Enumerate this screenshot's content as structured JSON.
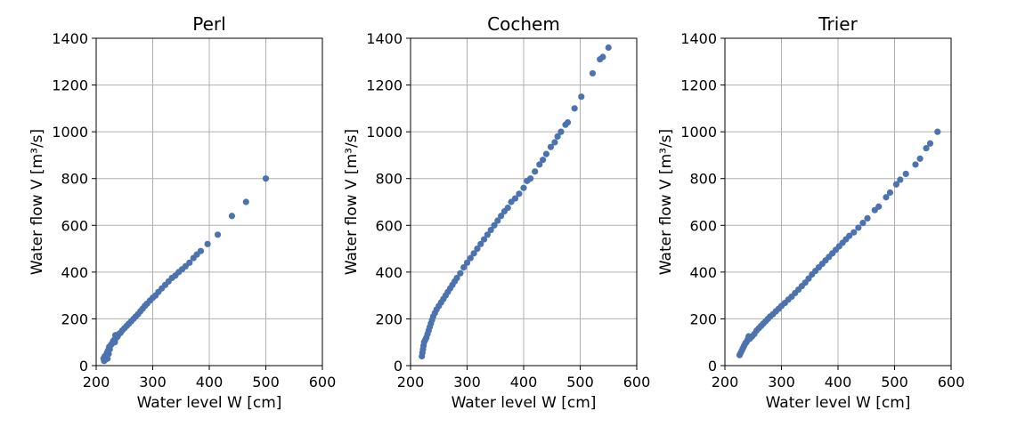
{
  "colors": {
    "marker": "#4c72b0",
    "grid": "#b0b0b0",
    "frame": "#000000"
  },
  "chart_data": [
    {
      "type": "scatter",
      "title": "Perl",
      "xlabel": "Water level W [cm]",
      "ylabel": "Water flow V [m³/s]",
      "xlim": [
        200,
        600
      ],
      "ylim": [
        0,
        1400
      ],
      "xticks": [
        200,
        300,
        400,
        500,
        600
      ],
      "yticks": [
        0,
        200,
        400,
        600,
        800,
        1000,
        1200,
        1400
      ],
      "grid": true,
      "points": [
        [
          213,
          30
        ],
        [
          214,
          20
        ],
        [
          215,
          40
        ],
        [
          216,
          25
        ],
        [
          217,
          35
        ],
        [
          218,
          45
        ],
        [
          219,
          55
        ],
        [
          220,
          30
        ],
        [
          221,
          65
        ],
        [
          222,
          50
        ],
        [
          223,
          80
        ],
        [
          224,
          70
        ],
        [
          226,
          88
        ],
        [
          228,
          95
        ],
        [
          230,
          105
        ],
        [
          232,
          110
        ],
        [
          233,
          100
        ],
        [
          234,
          130
        ],
        [
          236,
          120
        ],
        [
          238,
          125
        ],
        [
          240,
          135
        ],
        [
          243,
          140
        ],
        [
          246,
          150
        ],
        [
          250,
          160
        ],
        [
          254,
          170
        ],
        [
          258,
          180
        ],
        [
          262,
          190
        ],
        [
          266,
          200
        ],
        [
          270,
          210
        ],
        [
          274,
          220
        ],
        [
          278,
          232
        ],
        [
          282,
          243
        ],
        [
          286,
          255
        ],
        [
          290,
          265
        ],
        [
          295,
          278
        ],
        [
          300,
          290
        ],
        [
          305,
          300
        ],
        [
          310,
          315
        ],
        [
          316,
          330
        ],
        [
          322,
          345
        ],
        [
          328,
          360
        ],
        [
          334,
          375
        ],
        [
          340,
          385
        ],
        [
          346,
          400
        ],
        [
          352,
          412
        ],
        [
          358,
          425
        ],
        [
          365,
          440
        ],
        [
          372,
          460
        ],
        [
          378,
          475
        ],
        [
          385,
          490
        ],
        [
          397,
          520
        ],
        [
          415,
          560
        ],
        [
          440,
          640
        ],
        [
          465,
          700
        ],
        [
          500,
          800
        ]
      ]
    },
    {
      "type": "scatter",
      "title": "Cochem",
      "xlabel": "Water level W [cm]",
      "ylabel": "Water flow V [m³/s]",
      "xlim": [
        200,
        600
      ],
      "ylim": [
        0,
        1400
      ],
      "xticks": [
        200,
        300,
        400,
        500,
        600
      ],
      "yticks": [
        0,
        200,
        400,
        600,
        800,
        1000,
        1200,
        1400
      ],
      "grid": true,
      "points": [
        [
          220,
          40
        ],
        [
          221,
          55
        ],
        [
          222,
          70
        ],
        [
          223,
          85
        ],
        [
          224,
          100
        ],
        [
          226,
          110
        ],
        [
          228,
          120
        ],
        [
          230,
          135
        ],
        [
          232,
          150
        ],
        [
          234,
          165
        ],
        [
          236,
          180
        ],
        [
          238,
          195
        ],
        [
          240,
          210
        ],
        [
          243,
          225
        ],
        [
          246,
          240
        ],
        [
          250,
          255
        ],
        [
          254,
          270
        ],
        [
          258,
          285
        ],
        [
          262,
          300
        ],
        [
          266,
          315
        ],
        [
          270,
          330
        ],
        [
          274,
          345
        ],
        [
          278,
          360
        ],
        [
          282,
          375
        ],
        [
          288,
          395
        ],
        [
          294,
          420
        ],
        [
          300,
          440
        ],
        [
          306,
          460
        ],
        [
          312,
          480
        ],
        [
          318,
          500
        ],
        [
          324,
          520
        ],
        [
          330,
          540
        ],
        [
          336,
          560
        ],
        [
          342,
          580
        ],
        [
          348,
          600
        ],
        [
          354,
          620
        ],
        [
          360,
          640
        ],
        [
          366,
          660
        ],
        [
          372,
          675
        ],
        [
          378,
          700
        ],
        [
          385,
          715
        ],
        [
          392,
          735
        ],
        [
          400,
          760
        ],
        [
          406,
          790
        ],
        [
          412,
          800
        ],
        [
          420,
          830
        ],
        [
          428,
          860
        ],
        [
          434,
          880
        ],
        [
          440,
          905
        ],
        [
          448,
          935
        ],
        [
          455,
          955
        ],
        [
          460,
          980
        ],
        [
          466,
          1000
        ],
        [
          474,
          1030
        ],
        [
          478,
          1040
        ],
        [
          490,
          1100
        ],
        [
          502,
          1150
        ],
        [
          522,
          1250
        ],
        [
          535,
          1310
        ],
        [
          540,
          1320
        ],
        [
          550,
          1360
        ]
      ]
    },
    {
      "type": "scatter",
      "title": "Trier",
      "xlabel": "Water level W [cm]",
      "ylabel": "Water flow V [m³/s]",
      "xlim": [
        200,
        600
      ],
      "ylim": [
        0,
        1400
      ],
      "xticks": [
        200,
        300,
        400,
        500,
        600
      ],
      "yticks": [
        0,
        200,
        400,
        600,
        800,
        1000,
        1200,
        1400
      ],
      "grid": true,
      "points": [
        [
          226,
          45
        ],
        [
          228,
          55
        ],
        [
          230,
          65
        ],
        [
          232,
          75
        ],
        [
          234,
          85
        ],
        [
          236,
          95
        ],
        [
          238,
          100
        ],
        [
          240,
          110
        ],
        [
          242,
          125
        ],
        [
          244,
          115
        ],
        [
          248,
          125
        ],
        [
          252,
          135
        ],
        [
          256,
          150
        ],
        [
          260,
          160
        ],
        [
          264,
          170
        ],
        [
          268,
          180
        ],
        [
          272,
          190
        ],
        [
          276,
          200
        ],
        [
          280,
          210
        ],
        [
          285,
          220
        ],
        [
          290,
          232
        ],
        [
          295,
          243
        ],
        [
          300,
          255
        ],
        [
          306,
          268
        ],
        [
          312,
          282
        ],
        [
          318,
          295
        ],
        [
          324,
          310
        ],
        [
          330,
          325
        ],
        [
          336,
          340
        ],
        [
          342,
          355
        ],
        [
          348,
          372
        ],
        [
          354,
          390
        ],
        [
          360,
          405
        ],
        [
          366,
          420
        ],
        [
          372,
          435
        ],
        [
          378,
          450
        ],
        [
          384,
          465
        ],
        [
          390,
          480
        ],
        [
          396,
          495
        ],
        [
          402,
          510
        ],
        [
          408,
          525
        ],
        [
          414,
          540
        ],
        [
          420,
          555
        ],
        [
          428,
          570
        ],
        [
          436,
          590
        ],
        [
          444,
          610
        ],
        [
          452,
          630
        ],
        [
          465,
          665
        ],
        [
          472,
          680
        ],
        [
          485,
          720
        ],
        [
          492,
          740
        ],
        [
          503,
          775
        ],
        [
          510,
          795
        ],
        [
          520,
          820
        ],
        [
          537,
          860
        ],
        [
          545,
          885
        ],
        [
          556,
          930
        ],
        [
          563,
          950
        ],
        [
          576,
          1000
        ]
      ]
    }
  ]
}
